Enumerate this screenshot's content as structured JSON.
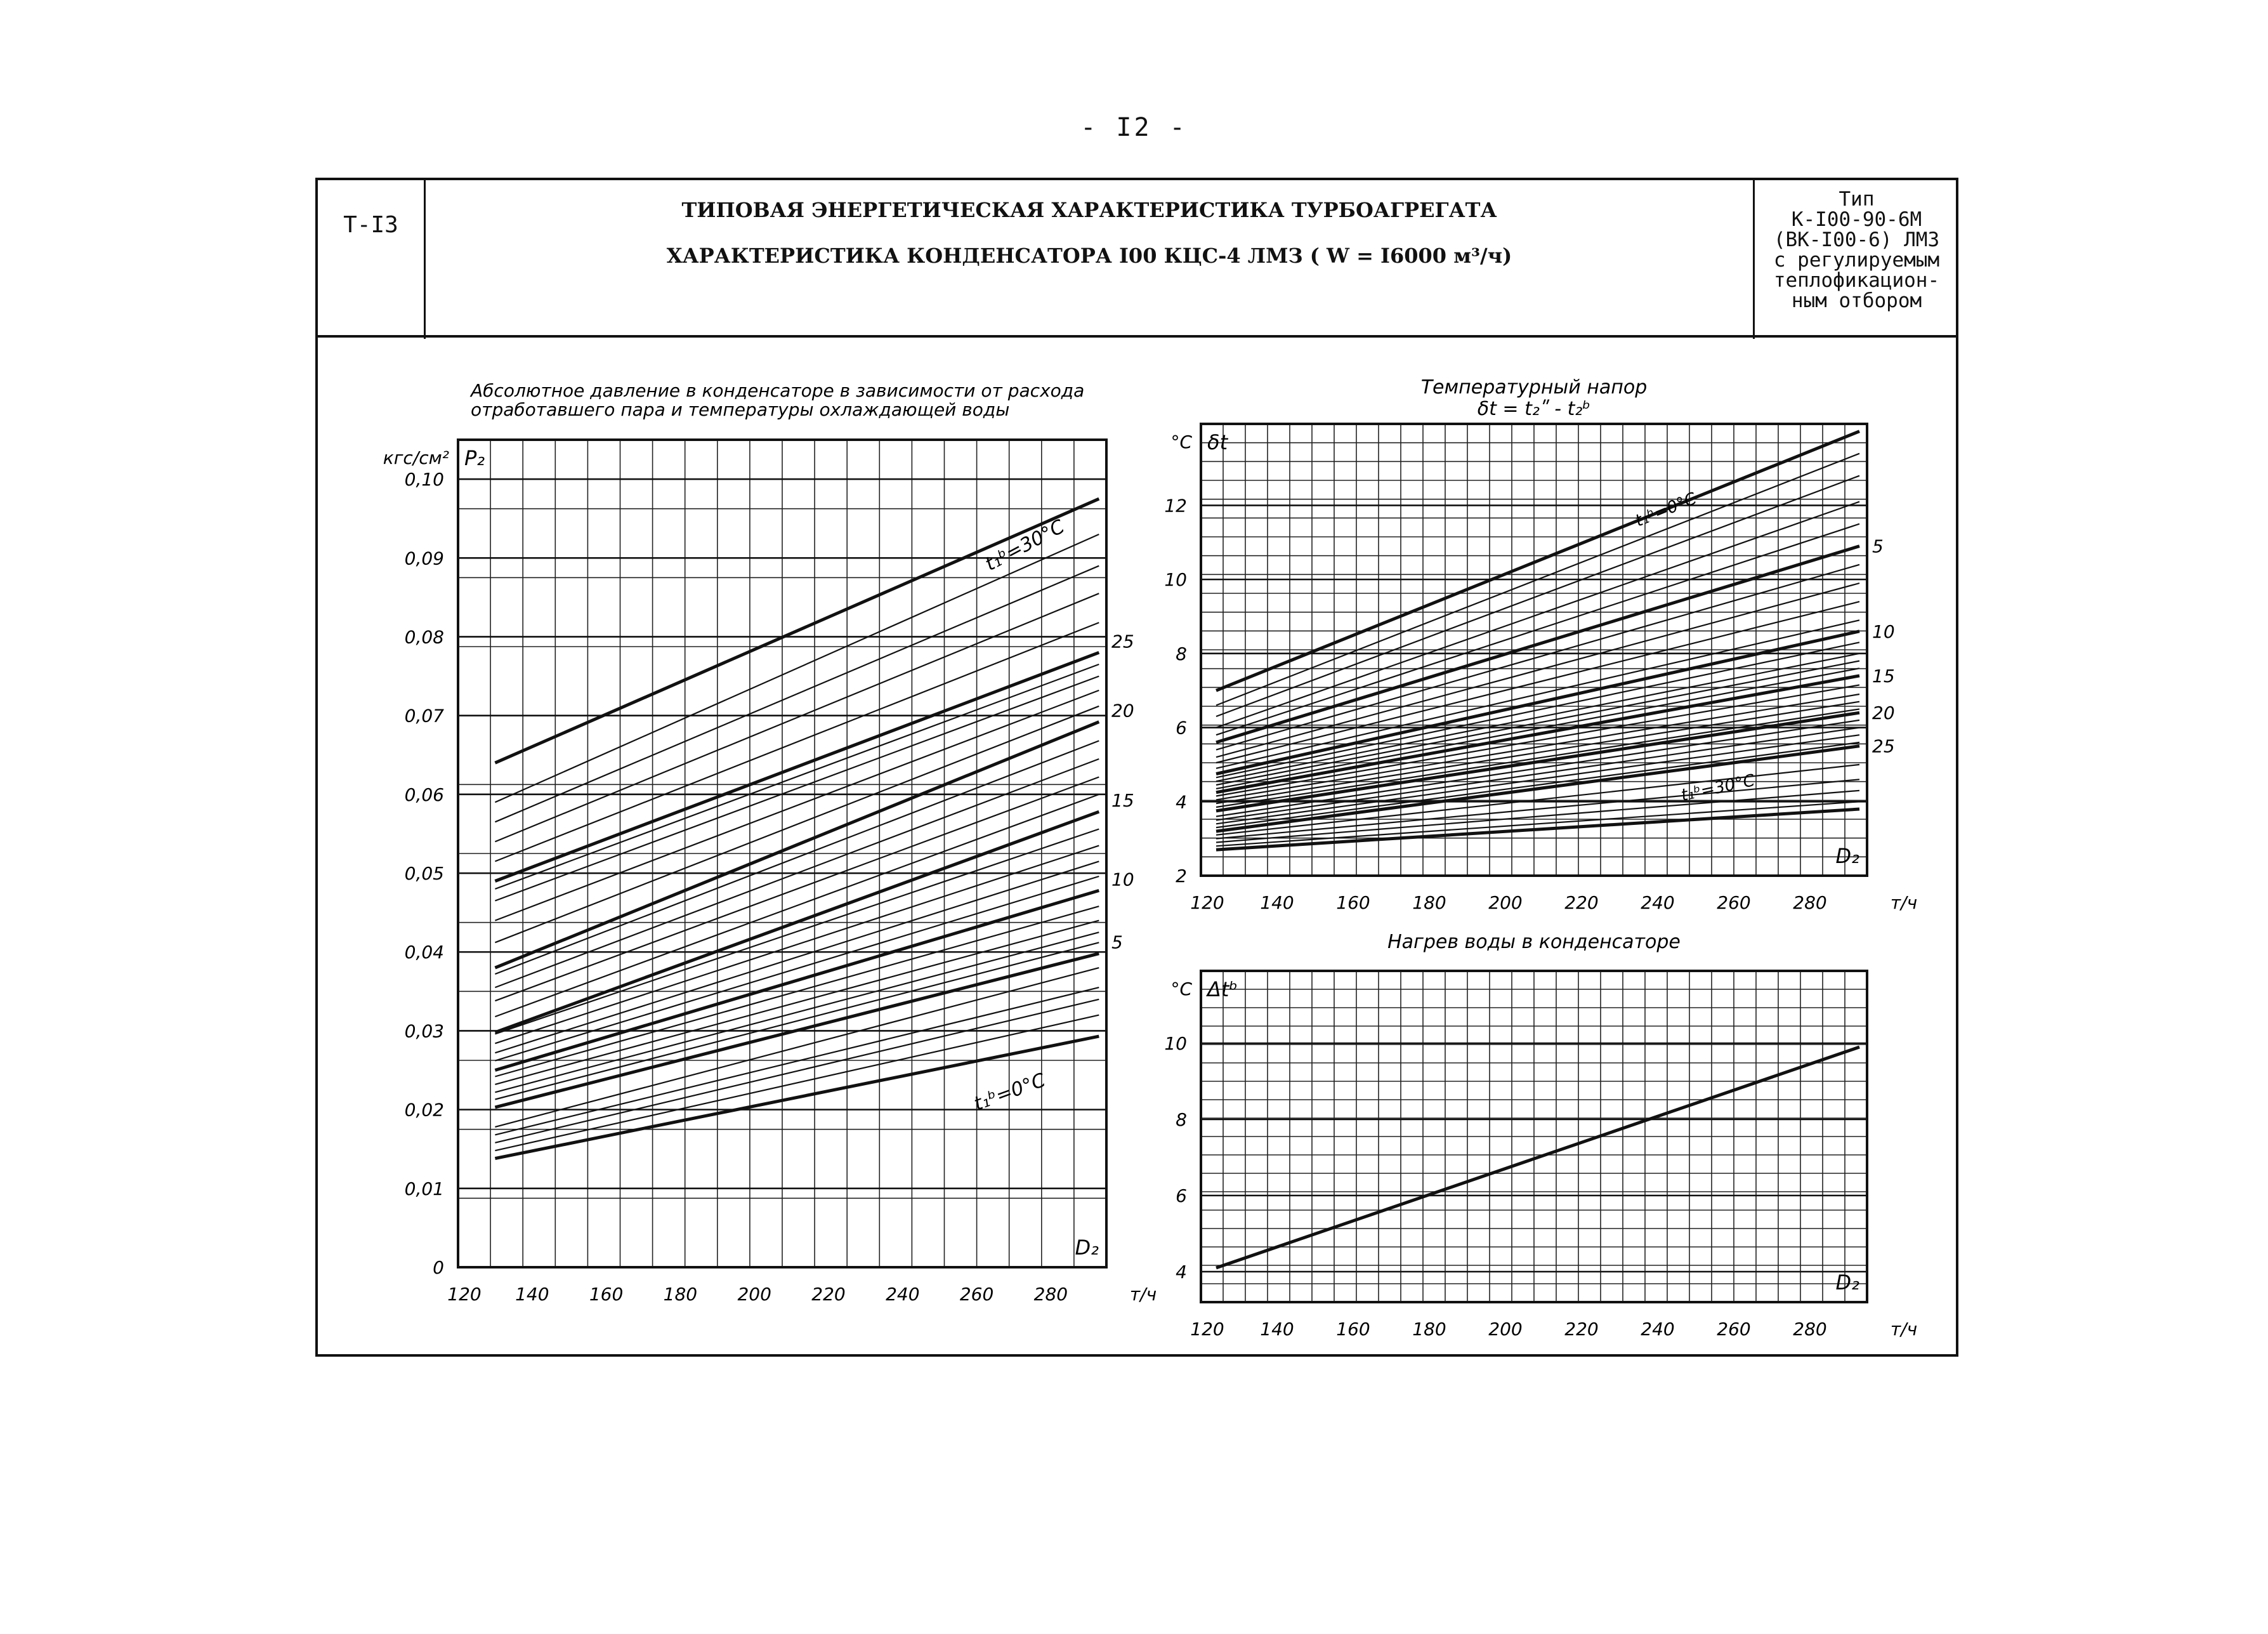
{
  "page": {
    "number": "- I2 -",
    "sheet_code": "Т-I3",
    "title_line1": "ТИПОВАЯ ЭНЕРГЕТИЧЕСКАЯ ХАРАКТЕРИСТИКА ТУРБОАГРЕГАТА",
    "title_line2": "ХАРАКТЕРИСТИКА КОНДЕНСАТОРА I00 КЦС-4 ЛМЗ ( W = I6000 м³/ч)",
    "type_lines": [
      "Тип",
      "К-I00-90-6М",
      "(ВК-I00-6) ЛМЗ",
      "с регулируемым",
      "теплофикацион-",
      "ным отбором"
    ]
  },
  "chart_data": [
    {
      "type": "line",
      "title": "Абсолютное давление в конденсаторе в зависимости от расхода отработавшего пара и температуры охлаждающей воды",
      "title_lines": [
        "Абсолютное давление в конденсаторе в зависимости от расхода",
        "отработавшего пара и температуры охлаждающей воды"
      ],
      "xlabel": "D₂",
      "xunit": "т/ч",
      "ylabel": "P₂",
      "yunit": "кгс/см²",
      "xlim": [
        120,
        295
      ],
      "ylim": [
        0,
        0.105
      ],
      "xticks": [
        120,
        140,
        160,
        180,
        200,
        220,
        240,
        260,
        280
      ],
      "xtick_labels": [
        "120",
        "140",
        "160",
        "180",
        "200",
        "220",
        "240",
        "260",
        "280"
      ],
      "yticks": [
        0,
        0.01,
        0.02,
        0.03,
        0.04,
        0.05,
        0.06,
        0.07,
        0.08,
        0.09,
        0.1
      ],
      "ytick_labels": [
        "0",
        "0,01",
        "0,02",
        "0,03",
        "0,04",
        "0,05",
        "0,06",
        "0,07",
        "0,08",
        "0,09",
        "0,10"
      ],
      "grid": true,
      "curve_labels": {
        "top": "t₁ᵇ=30°C",
        "bottom": "t₁ᵇ=0°C",
        "side": [
          "25",
          "20",
          "15",
          "10",
          "5"
        ]
      },
      "series": [
        {
          "t": 0,
          "x": [
            130,
            293
          ],
          "y": [
            0.0138,
            0.0293
          ]
        },
        {
          "t": 1,
          "x": [
            130,
            293
          ],
          "y": [
            0.0148,
            0.032
          ]
        },
        {
          "t": 2,
          "x": [
            130,
            293
          ],
          "y": [
            0.0158,
            0.034
          ]
        },
        {
          "t": 3,
          "x": [
            130,
            293
          ],
          "y": [
            0.0168,
            0.0355
          ]
        },
        {
          "t": 4,
          "x": [
            130,
            293
          ],
          "y": [
            0.0178,
            0.038
          ]
        },
        {
          "t": 5,
          "x": [
            130,
            293
          ],
          "y": [
            0.0203,
            0.0398
          ]
        },
        {
          "t": 6,
          "x": [
            130,
            293
          ],
          "y": [
            0.0213,
            0.0412
          ]
        },
        {
          "t": 7,
          "x": [
            130,
            293
          ],
          "y": [
            0.0222,
            0.0425
          ]
        },
        {
          "t": 8,
          "x": [
            130,
            293
          ],
          "y": [
            0.0232,
            0.044
          ]
        },
        {
          "t": 9,
          "x": [
            130,
            293
          ],
          "y": [
            0.0242,
            0.0458
          ]
        },
        {
          "t": 10,
          "x": [
            130,
            293
          ],
          "y": [
            0.025,
            0.0478
          ]
        },
        {
          "t": 11,
          "x": [
            130,
            293
          ],
          "y": [
            0.0262,
            0.0496
          ]
        },
        {
          "t": 12,
          "x": [
            130,
            293
          ],
          "y": [
            0.0272,
            0.0515
          ]
        },
        {
          "t": 13,
          "x": [
            130,
            293
          ],
          "y": [
            0.0284,
            0.0535
          ]
        },
        {
          "t": 14,
          "x": [
            130,
            293
          ],
          "y": [
            0.0296,
            0.0556
          ]
        },
        {
          "t": 15,
          "x": [
            130,
            293
          ],
          "y": [
            0.0298,
            0.0578
          ]
        },
        {
          "t": 16,
          "x": [
            130,
            293
          ],
          "y": [
            0.0318,
            0.06
          ]
        },
        {
          "t": 17,
          "x": [
            130,
            293
          ],
          "y": [
            0.0338,
            0.0622
          ]
        },
        {
          "t": 18,
          "x": [
            130,
            293
          ],
          "y": [
            0.0355,
            0.0645
          ]
        },
        {
          "t": 19,
          "x": [
            130,
            293
          ],
          "y": [
            0.0372,
            0.0668
          ]
        },
        {
          "t": 20,
          "x": [
            130,
            293
          ],
          "y": [
            0.038,
            0.0692
          ]
        },
        {
          "t": 21,
          "x": [
            130,
            293
          ],
          "y": [
            0.0412,
            0.0712
          ]
        },
        {
          "t": 22,
          "x": [
            130,
            293
          ],
          "y": [
            0.044,
            0.0732
          ]
        },
        {
          "t": 23,
          "x": [
            130,
            293
          ],
          "y": [
            0.0465,
            0.075
          ]
        },
        {
          "t": 24,
          "x": [
            130,
            293
          ],
          "y": [
            0.048,
            0.0765
          ]
        },
        {
          "t": 25,
          "x": [
            130,
            293
          ],
          "y": [
            0.049,
            0.078
          ]
        },
        {
          "t": 26,
          "x": [
            130,
            293
          ],
          "y": [
            0.0515,
            0.0818
          ]
        },
        {
          "t": 27,
          "x": [
            130,
            293
          ],
          "y": [
            0.054,
            0.0855
          ]
        },
        {
          "t": 28,
          "x": [
            130,
            293
          ],
          "y": [
            0.0565,
            0.089
          ]
        },
        {
          "t": 29,
          "x": [
            130,
            293
          ],
          "y": [
            0.059,
            0.093
          ]
        },
        {
          "t": 30,
          "x": [
            130,
            293
          ],
          "y": [
            0.064,
            0.0975
          ]
        }
      ]
    },
    {
      "type": "line",
      "title": "Температурный напор",
      "subtitle": "δt = t₂ʺ - t₂ᵇ",
      "xlabel": "D₂",
      "xunit": "т/ч",
      "ylabel": "δt",
      "yunit": "°C",
      "xlim": [
        120,
        295
      ],
      "ylim": [
        2,
        14.2
      ],
      "xticks": [
        120,
        140,
        160,
        180,
        200,
        220,
        240,
        260,
        280
      ],
      "xtick_labels": [
        "120",
        "140",
        "160",
        "180",
        "200",
        "220",
        "240",
        "260",
        "280"
      ],
      "yticks": [
        2,
        4,
        6,
        8,
        10,
        12
      ],
      "ytick_labels": [
        "2",
        "4",
        "6",
        "8",
        "10",
        "12"
      ],
      "grid": true,
      "curve_labels": {
        "top": "t₁ᵇ=0°C",
        "bottom": "t₁ᵇ=30°C",
        "side": [
          "5",
          "10",
          "15",
          "20",
          "25"
        ]
      },
      "series": [
        {
          "t": 0,
          "x": [
            124,
            293
          ],
          "y": [
            7.0,
            14.0
          ]
        },
        {
          "t": 1,
          "x": [
            124,
            293
          ],
          "y": [
            6.6,
            13.4
          ]
        },
        {
          "t": 2,
          "x": [
            124,
            293
          ],
          "y": [
            6.3,
            12.8
          ]
        },
        {
          "t": 3,
          "x": [
            124,
            293
          ],
          "y": [
            6.0,
            12.1
          ]
        },
        {
          "t": 4,
          "x": [
            124,
            293
          ],
          "y": [
            5.8,
            11.5
          ]
        },
        {
          "t": 5,
          "x": [
            124,
            293
          ],
          "y": [
            5.6,
            10.9
          ]
        },
        {
          "t": 6,
          "x": [
            124,
            293
          ],
          "y": [
            5.4,
            10.4
          ]
        },
        {
          "t": 7,
          "x": [
            124,
            293
          ],
          "y": [
            5.2,
            9.9
          ]
        },
        {
          "t": 8,
          "x": [
            124,
            293
          ],
          "y": [
            5.05,
            9.4
          ]
        },
        {
          "t": 9,
          "x": [
            124,
            293
          ],
          "y": [
            4.9,
            8.9
          ]
        },
        {
          "t": 10,
          "x": [
            124,
            293
          ],
          "y": [
            4.75,
            8.6
          ]
        },
        {
          "t": 11,
          "x": [
            124,
            293
          ],
          "y": [
            4.65,
            8.3
          ]
        },
        {
          "t": 12,
          "x": [
            124,
            293
          ],
          "y": [
            4.55,
            8.0
          ]
        },
        {
          "t": 13,
          "x": [
            124,
            293
          ],
          "y": [
            4.45,
            7.8
          ]
        },
        {
          "t": 14,
          "x": [
            124,
            293
          ],
          "y": [
            4.35,
            7.6
          ]
        },
        {
          "t": 15,
          "x": [
            124,
            293
          ],
          "y": [
            4.25,
            7.4
          ]
        },
        {
          "t": 16,
          "x": [
            124,
            293
          ],
          "y": [
            4.15,
            7.15
          ]
        },
        {
          "t": 17,
          "x": [
            124,
            293
          ],
          "y": [
            4.05,
            6.9
          ]
        },
        {
          "t": 18,
          "x": [
            124,
            293
          ],
          "y": [
            3.95,
            6.7
          ]
        },
        {
          "t": 19,
          "x": [
            124,
            293
          ],
          "y": [
            3.85,
            6.5
          ]
        },
        {
          "t": 20,
          "x": [
            124,
            293
          ],
          "y": [
            3.75,
            6.4
          ]
        },
        {
          "t": 21,
          "x": [
            124,
            293
          ],
          "y": [
            3.6,
            6.2
          ]
        },
        {
          "t": 22,
          "x": [
            124,
            293
          ],
          "y": [
            3.5,
            6.0
          ]
        },
        {
          "t": 23,
          "x": [
            124,
            293
          ],
          "y": [
            3.4,
            5.8
          ]
        },
        {
          "t": 24,
          "x": [
            124,
            293
          ],
          "y": [
            3.3,
            5.6
          ]
        },
        {
          "t": 25,
          "x": [
            124,
            293
          ],
          "y": [
            3.2,
            5.5
          ]
        },
        {
          "t": 26,
          "x": [
            124,
            293
          ],
          "y": [
            3.1,
            5.0
          ]
        },
        {
          "t": 27,
          "x": [
            124,
            293
          ],
          "y": [
            3.0,
            4.6
          ]
        },
        {
          "t": 28,
          "x": [
            124,
            293
          ],
          "y": [
            2.9,
            4.3
          ]
        },
        {
          "t": 29,
          "x": [
            124,
            293
          ],
          "y": [
            2.8,
            4.0
          ]
        },
        {
          "t": 30,
          "x": [
            124,
            293
          ],
          "y": [
            2.7,
            3.8
          ]
        }
      ]
    },
    {
      "type": "line",
      "title": "Нагрев воды в конденсаторе",
      "xlabel": "D₂",
      "xunit": "т/ч",
      "ylabel": "Δtᵇ",
      "yunit": "°C",
      "xlim": [
        120,
        295
      ],
      "ylim": [
        3.2,
        11.9
      ],
      "xticks": [
        120,
        140,
        160,
        180,
        200,
        220,
        240,
        260,
        280
      ],
      "xtick_labels": [
        "120",
        "140",
        "160",
        "180",
        "200",
        "220",
        "240",
        "260",
        "280"
      ],
      "yticks": [
        4,
        6,
        8,
        10
      ],
      "ytick_labels": [
        "4",
        "6",
        "8",
        "10"
      ],
      "grid": true,
      "series": [
        {
          "x": [
            124,
            293
          ],
          "y": [
            4.1,
            9.9
          ]
        }
      ]
    }
  ]
}
